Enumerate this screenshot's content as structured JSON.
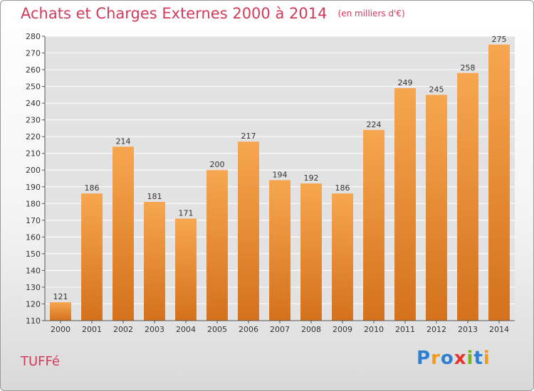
{
  "title": "Achats et Charges Externes 2000 à 2014",
  "subtitle": "(en milliers d'€)",
  "commune": "TUFFé",
  "logo": {
    "text": "Proxiti",
    "letters": [
      "P",
      "r",
      "o",
      "x",
      "i",
      "t",
      "i"
    ],
    "colors": [
      "#2f7fd0",
      "#f39a1e",
      "#2f7fd0",
      "#e8332a",
      "#78b51e",
      "#2f7fd0",
      "#f39a1e"
    ]
  },
  "colors": {
    "bar_top": "#f7a650",
    "bar_bottom": "#d4711c",
    "title": "#d23a5a",
    "grid": "#ffffff",
    "plot_bg": "#e2e2e2"
  },
  "chart_data": {
    "type": "bar",
    "title": "Achats et Charges Externes 2000 à 2014",
    "subtitle": "(en milliers d'€)",
    "categories": [
      "2000",
      "2001",
      "2002",
      "2003",
      "2004",
      "2005",
      "2006",
      "2007",
      "2008",
      "2009",
      "2010",
      "2011",
      "2012",
      "2013",
      "2014"
    ],
    "values": [
      121,
      186,
      214,
      181,
      171,
      200,
      217,
      194,
      192,
      186,
      224,
      249,
      245,
      258,
      275
    ],
    "ylim": [
      110,
      280
    ],
    "yticks": [
      110,
      120,
      130,
      140,
      150,
      160,
      170,
      180,
      190,
      200,
      210,
      220,
      230,
      240,
      250,
      260,
      270,
      280
    ],
    "grid": true,
    "xlabel": "",
    "ylabel": ""
  }
}
